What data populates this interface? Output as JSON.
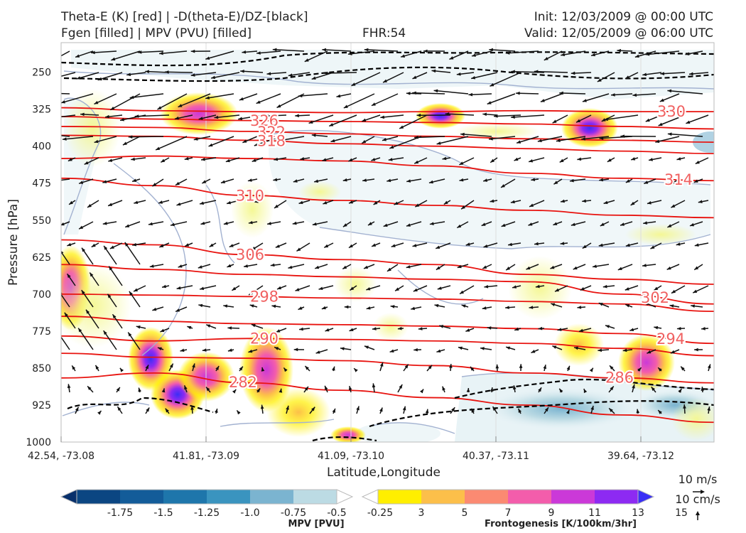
{
  "titles": {
    "left_line1": "Theta-E (K) [red] | -D(theta-E)/DZ-[black]",
    "left_line2": "Fgen [filled] | MPV (PVU) [filled]",
    "center": "FHR:54",
    "right_line1": "Init: 12/03/2009 @ 00:00 UTC",
    "right_line2": "Valid: 12/05/2009 @ 06:00 UTC"
  },
  "colors": {
    "theta_e": "#e8130f",
    "theta_e_label": "#f06060",
    "dtheta_dz": "#000000",
    "mpv_outline": "#a3b2d1",
    "frame": "#bbbbbb"
  },
  "chart_data": {
    "type": "cross-section",
    "xlabel": "Latitude,Longitude",
    "ylabel": "Pressure [hPa]",
    "x_ticks": [
      "42.54, -73.08",
      "41.81, -73.09",
      "41.09, -73.10",
      "40.37, -73.11",
      "39.64, -73.12"
    ],
    "y_ticks": [
      250,
      325,
      400,
      475,
      550,
      625,
      700,
      775,
      850,
      925,
      1000
    ],
    "ylim": [
      1000,
      190
    ],
    "grid": true,
    "theta_e_contours": [
      {
        "label": "330",
        "pressure": [
          322,
          328,
          330,
          332,
          330,
          328,
          330,
          330
        ]
      },
      {
        "label": "326",
        "pressure": [
          340,
          345,
          348,
          350,
          352,
          355,
          360,
          365
        ]
      },
      {
        "label": "322",
        "pressure": [
          360,
          362,
          370,
          375,
          380,
          385,
          388,
          392
        ]
      },
      {
        "label": "318",
        "pressure": [
          378,
          380,
          388,
          395,
          400,
          405,
          410,
          415
        ]
      },
      {
        "label": "314",
        "pressure": [
          425,
          420,
          425,
          430,
          440,
          455,
          465,
          470
        ]
      },
      {
        "label": "310",
        "pressure": [
          465,
          480,
          500,
          510,
          520,
          530,
          540,
          545
        ]
      },
      {
        "label": "306",
        "pressure": [
          590,
          600,
          620,
          630,
          640,
          660,
          670,
          680
        ]
      },
      {
        "label": "302",
        "pressure": [
          640,
          650,
          660,
          665,
          670,
          675,
          700,
          720
        ]
      },
      {
        "label": "298",
        "pressure": [
          700,
          702,
          705,
          708,
          710,
          715,
          720,
          735
        ]
      },
      {
        "label": "294",
        "pressure": [
          745,
          755,
          760,
          762,
          765,
          770,
          780,
          800
        ]
      },
      {
        "label": "290",
        "pressure": [
          785,
          795,
          790,
          792,
          795,
          800,
          810,
          825
        ]
      },
      {
        "label": "286",
        "pressure": [
          820,
          828,
          830,
          835,
          845,
          860,
          870,
          880
        ]
      },
      {
        "label": "282",
        "pressure": [
          870,
          860,
          880,
          895,
          910,
          925,
          945,
          960
        ]
      }
    ],
    "mpv_colorbar": {
      "label": "MPV [PVU]",
      "ticks": [
        "-1.75",
        "-1.5",
        "-1.25",
        "-1.0",
        "-0.75",
        "-0.5",
        "-0.25"
      ],
      "colors": [
        "#08306b",
        "#0b4682",
        "#135c99",
        "#1e76ab",
        "#3a94bf",
        "#7bb4d0",
        "#bcdbe4",
        "#ffffff"
      ]
    },
    "fgen_colorbar": {
      "label": "Frontogenesis [K/100km/3hr]",
      "ticks": [
        "3",
        "5",
        "7",
        "9",
        "11",
        "13",
        "15"
      ],
      "colors": [
        "#ffffff",
        "#ffef00",
        "#fcbf4a",
        "#fb8a72",
        "#f35dab",
        "#cb39d8",
        "#8d2af2",
        "#3a2ff5"
      ]
    },
    "wind_reference": {
      "label_1": "10 m/s",
      "label_2": "10 cm/s"
    }
  }
}
